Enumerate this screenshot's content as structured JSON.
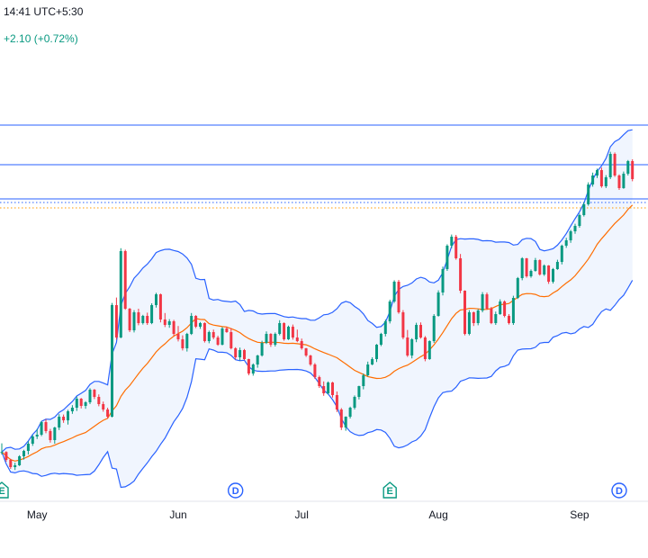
{
  "header": {
    "time": "14:41 UTC+5:30",
    "change": "+2.10 (+0.72%)"
  },
  "colors": {
    "up": "#089981",
    "down": "#f23645",
    "band_line": "#2962ff",
    "band_fill": "#e9f1fd",
    "basis": "#ff6d00",
    "hline": "#2962ff",
    "price_line": "#ff9800",
    "event_dividend": "#2962ff",
    "event_earnings": "#089981"
  },
  "chart_data": {
    "type": "candlestick",
    "indicator": "bollinger_bands",
    "x_tick_labels": [
      "May",
      "Jun",
      "Jul",
      "Aug",
      "Sep"
    ],
    "y_range": [
      0,
      100
    ],
    "horizontal_lines": [
      95,
      84,
      74.5,
      73.5
    ],
    "price_line": 72,
    "event_markers": [
      {
        "label": "E",
        "kind": "earnings",
        "index": 0
      },
      {
        "label": "D",
        "kind": "dividend",
        "index": 53
      },
      {
        "label": "E",
        "kind": "earnings",
        "index": 88
      },
      {
        "label": "D",
        "kind": "dividend",
        "index": 140
      }
    ],
    "candles": [
      [
        4.0,
        6.6,
        3.5,
        4.2
      ],
      [
        4.2,
        4.4,
        1.5,
        2.0
      ],
      [
        2.0,
        2.3,
        -0.5,
        0.0
      ],
      [
        0.0,
        1.2,
        -0.8,
        0.5
      ],
      [
        0.5,
        3.3,
        0.3,
        3.0
      ],
      [
        3.0,
        4.8,
        2.1,
        4.5
      ],
      [
        4.5,
        7.2,
        3.5,
        6.5
      ],
      [
        6.5,
        8.9,
        5.9,
        8.5
      ],
      [
        8.5,
        10.6,
        7.8,
        9.0
      ],
      [
        9.0,
        12.8,
        8.6,
        12.5
      ],
      [
        12.5,
        13.3,
        9.4,
        10.0
      ],
      [
        10.0,
        10.6,
        6.8,
        7.5
      ],
      [
        7.5,
        11.2,
        6.5,
        11.0
      ],
      [
        11.0,
        14.7,
        10.3,
        14.0
      ],
      [
        14.0,
        14.6,
        12.3,
        13.0
      ],
      [
        13.0,
        15.9,
        11.8,
        15.5
      ],
      [
        15.5,
        17.2,
        14.8,
        16.5
      ],
      [
        16.5,
        19.6,
        15.6,
        19.0
      ],
      [
        19.0,
        19.2,
        16.3,
        17.0
      ],
      [
        17.0,
        18.3,
        16.2,
        18.0
      ],
      [
        18.0,
        21.9,
        17.5,
        21.5
      ],
      [
        21.5,
        21.7,
        18.9,
        19.5
      ],
      [
        19.5,
        20.2,
        16.9,
        17.5
      ],
      [
        17.5,
        18.2,
        15.4,
        16.0
      ],
      [
        16.0,
        16.5,
        13.5,
        14.0
      ],
      [
        14.0,
        45.6,
        13.8,
        45.0
      ],
      [
        45.0,
        47.1,
        35.4,
        36.0
      ],
      [
        36.0,
        60.8,
        35.8,
        60.0
      ],
      [
        60.0,
        60.4,
        43.7,
        44.0
      ],
      [
        44.0,
        44.2,
        37.5,
        38.0
      ],
      [
        38.0,
        43.6,
        37.4,
        43.0
      ],
      [
        43.0,
        44.0,
        39.4,
        40.0
      ],
      [
        40.0,
        42.3,
        39.6,
        42.0
      ],
      [
        42.0,
        42.9,
        39.5,
        40.0
      ],
      [
        40.0,
        45.5,
        39.7,
        45.0
      ],
      [
        45.0,
        48.4,
        44.3,
        48.0
      ],
      [
        48.0,
        48.2,
        40.2,
        41.0
      ],
      [
        41.0,
        42.8,
        38.9,
        39.5
      ],
      [
        39.5,
        41.1,
        38.7,
        40.5
      ],
      [
        40.5,
        40.9,
        36.4,
        37.0
      ],
      [
        37.0,
        39.2,
        34.9,
        35.5
      ],
      [
        35.5,
        36.6,
        32.4,
        33.0
      ],
      [
        33.0,
        37.3,
        32.1,
        37.0
      ],
      [
        37.0,
        42.8,
        36.7,
        42.0
      ],
      [
        42.0,
        42.2,
        38.6,
        39.0
      ],
      [
        39.0,
        40.3,
        38.4,
        40.0
      ],
      [
        40.0,
        40.2,
        34.6,
        35.0
      ],
      [
        35.0,
        37.9,
        34.4,
        37.5
      ],
      [
        37.5,
        38.2,
        35.5,
        36.0
      ],
      [
        36.0,
        36.5,
        33.7,
        34.0
      ],
      [
        34.0,
        38.9,
        33.8,
        38.5
      ],
      [
        38.5,
        39.0,
        37.3,
        37.5
      ],
      [
        37.5,
        38.6,
        32.7,
        33.0
      ],
      [
        33.0,
        33.3,
        29.9,
        30.5
      ],
      [
        30.5,
        33.2,
        29.6,
        32.5
      ],
      [
        32.5,
        32.8,
        29.7,
        30.0
      ],
      [
        30.0,
        30.1,
        25.5,
        26.0
      ],
      [
        26.0,
        28.8,
        25.4,
        28.5
      ],
      [
        28.5,
        31.2,
        27.6,
        31.0
      ],
      [
        31.0,
        35.1,
        30.7,
        34.5
      ],
      [
        34.5,
        37.7,
        34.2,
        37.0
      ],
      [
        37.0,
        37.2,
        33.4,
        34.0
      ],
      [
        34.0,
        37.4,
        33.5,
        37.0
      ],
      [
        37.0,
        40.8,
        36.6,
        40.0
      ],
      [
        40.0,
        40.2,
        35.1,
        35.5
      ],
      [
        35.5,
        39.3,
        35.3,
        39.0
      ],
      [
        39.0,
        39.6,
        35.4,
        36.0
      ],
      [
        36.0,
        38.2,
        34.7,
        35.0
      ],
      [
        35.0,
        35.7,
        32.6,
        33.0
      ],
      [
        33.0,
        33.1,
        30.6,
        31.0
      ],
      [
        31.0,
        31.2,
        28.1,
        28.5
      ],
      [
        28.5,
        28.9,
        24.5,
        25.0
      ],
      [
        25.0,
        25.4,
        22.0,
        22.5
      ],
      [
        22.5,
        23.8,
        19.8,
        20.5
      ],
      [
        20.5,
        23.8,
        20.2,
        23.5
      ],
      [
        23.5,
        23.7,
        19.3,
        20.0
      ],
      [
        20.0,
        21.0,
        15.3,
        16.0
      ],
      [
        16.0,
        16.4,
        10.3,
        11.0
      ],
      [
        11.0,
        14.1,
        10.1,
        14.0
      ],
      [
        14.0,
        16.8,
        13.5,
        16.5
      ],
      [
        16.5,
        19.9,
        16.0,
        19.5
      ],
      [
        19.5,
        22.6,
        18.8,
        22.5
      ],
      [
        22.5,
        26.0,
        21.6,
        25.5
      ],
      [
        25.5,
        29.3,
        25.2,
        28.5
      ],
      [
        28.5,
        30.5,
        28.3,
        30.0
      ],
      [
        30.0,
        34.2,
        29.2,
        34.0
      ],
      [
        34.0,
        37.3,
        33.6,
        37.0
      ],
      [
        37.0,
        41.0,
        36.3,
        40.5
      ],
      [
        40.5,
        46.5,
        39.9,
        46.0
      ],
      [
        46.0,
        51.9,
        45.6,
        51.5
      ],
      [
        51.5,
        52.0,
        42.6,
        43.0
      ],
      [
        43.0,
        43.6,
        35.5,
        36.0
      ],
      [
        36.0,
        38.1,
        30.6,
        31.0
      ],
      [
        31.0,
        35.8,
        30.2,
        35.5
      ],
      [
        35.5,
        40.1,
        34.7,
        39.5
      ],
      [
        39.5,
        40.2,
        35.7,
        36.0
      ],
      [
        36.0,
        36.4,
        29.4,
        30.0
      ],
      [
        30.0,
        35.2,
        29.8,
        35.0
      ],
      [
        35.0,
        42.5,
        34.5,
        42.0
      ],
      [
        42.0,
        49.1,
        41.8,
        48.5
      ],
      [
        48.5,
        55.7,
        47.7,
        55.0
      ],
      [
        55.0,
        61.9,
        54.5,
        61.5
      ],
      [
        61.5,
        64.6,
        60.8,
        64.0
      ],
      [
        64.0,
        64.5,
        57.6,
        58.0
      ],
      [
        58.0,
        59.2,
        48.3,
        49.0
      ],
      [
        49.0,
        49.1,
        36.6,
        37.0
      ],
      [
        37.0,
        43.6,
        36.6,
        43.0
      ],
      [
        43.0,
        43.2,
        39.2,
        40.0
      ],
      [
        40.0,
        43.9,
        39.4,
        43.5
      ],
      [
        43.5,
        48.6,
        43.0,
        48.0
      ],
      [
        48.0,
        48.5,
        43.7,
        44.0
      ],
      [
        44.0,
        44.5,
        39.7,
        40.0
      ],
      [
        40.0,
        43.2,
        39.5,
        42.5
      ],
      [
        42.5,
        46.6,
        42.3,
        46.0
      ],
      [
        46.0,
        46.3,
        41.6,
        42.0
      ],
      [
        42.0,
        42.5,
        39.6,
        40.0
      ],
      [
        40.0,
        47.6,
        39.5,
        47.0
      ],
      [
        47.0,
        52.8,
        46.7,
        52.5
      ],
      [
        52.5,
        58.3,
        51.9,
        58.0
      ],
      [
        58.0,
        58.1,
        52.6,
        53.0
      ],
      [
        53.0,
        54.9,
        52.6,
        54.5
      ],
      [
        54.5,
        58.1,
        54.3,
        57.5
      ],
      [
        57.5,
        57.7,
        53.2,
        53.5
      ],
      [
        53.5,
        56.3,
        53.1,
        56.0
      ],
      [
        56.0,
        56.1,
        50.9,
        51.5
      ],
      [
        51.5,
        55.3,
        51.0,
        55.0
      ],
      [
        55.0,
        57.6,
        54.8,
        57.0
      ],
      [
        57.0,
        61.8,
        56.3,
        61.5
      ],
      [
        61.5,
        63.7,
        60.9,
        63.0
      ],
      [
        63.0,
        65.9,
        62.3,
        65.5
      ],
      [
        65.5,
        67.6,
        64.8,
        67.0
      ],
      [
        67.0,
        70.4,
        66.5,
        70.0
      ],
      [
        70.0,
        73.6,
        69.6,
        73.0
      ],
      [
        73.0,
        79.1,
        72.6,
        78.5
      ],
      [
        78.5,
        81.8,
        77.9,
        81.0
      ],
      [
        81.0,
        82.9,
        80.3,
        82.5
      ],
      [
        82.5,
        83.2,
        77.6,
        78.0
      ],
      [
        78.0,
        81.1,
        77.5,
        80.5
      ],
      [
        80.5,
        87.6,
        80.0,
        87.0
      ],
      [
        87.0,
        87.4,
        80.6,
        81.0
      ],
      [
        81.0,
        81.3,
        77.0,
        77.5
      ],
      [
        77.5,
        82.1,
        77.3,
        81.5
      ],
      [
        81.5,
        85.3,
        81.0,
        85.0
      ],
      [
        85.0,
        85.5,
        79.4,
        80.0
      ]
    ]
  }
}
